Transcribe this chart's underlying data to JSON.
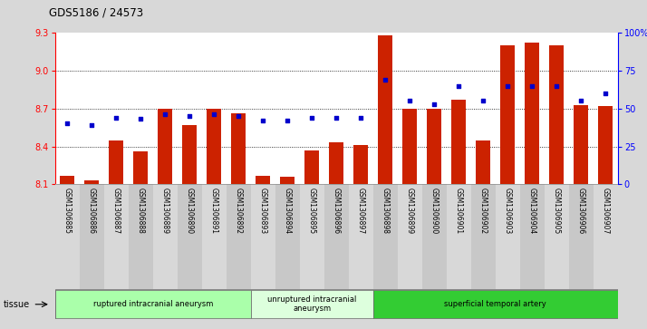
{
  "title": "GDS5186 / 24573",
  "categories": [
    "GSM1306885",
    "GSM1306886",
    "GSM1306887",
    "GSM1306888",
    "GSM1306889",
    "GSM1306890",
    "GSM1306891",
    "GSM1306892",
    "GSM1306893",
    "GSM1306894",
    "GSM1306895",
    "GSM1306896",
    "GSM1306897",
    "GSM1306898",
    "GSM1306899",
    "GSM1306900",
    "GSM1306901",
    "GSM1306902",
    "GSM1306903",
    "GSM1306904",
    "GSM1306905",
    "GSM1306906",
    "GSM1306907"
  ],
  "bar_values": [
    8.17,
    8.13,
    8.45,
    8.36,
    8.7,
    8.57,
    8.7,
    8.66,
    8.17,
    8.16,
    8.37,
    8.43,
    8.41,
    9.28,
    8.7,
    8.7,
    8.77,
    8.45,
    9.2,
    9.22,
    9.2,
    8.73,
    8.72
  ],
  "dot_values_pct": [
    40,
    39,
    44,
    43,
    46,
    45,
    46,
    45,
    42,
    42,
    44,
    44,
    44,
    69,
    55,
    53,
    65,
    55,
    65,
    65,
    65,
    55,
    60
  ],
  "bar_color": "#cc2200",
  "dot_color": "#0000cc",
  "ylim_left": [
    8.1,
    9.3
  ],
  "ylim_right": [
    0,
    100
  ],
  "yticks_left": [
    8.1,
    8.4,
    8.7,
    9.0,
    9.3
  ],
  "yticks_right": [
    0,
    25,
    50,
    75,
    100
  ],
  "ytick_labels_right": [
    "0",
    "25",
    "50",
    "75",
    "100%"
  ],
  "grid_lines": [
    8.4,
    8.7,
    9.0
  ],
  "groups": [
    {
      "label": "ruptured intracranial aneurysm",
      "start": 0,
      "end": 8,
      "color": "#aaffaa"
    },
    {
      "label": "unruptured intracranial\naneurysm",
      "start": 8,
      "end": 13,
      "color": "#ddffdd"
    },
    {
      "label": "superficial temporal artery",
      "start": 13,
      "end": 23,
      "color": "#33cc33"
    }
  ],
  "col_bg_light": "#d8d8d8",
  "col_bg_dark": "#c8c8c8",
  "tissue_label": "tissue",
  "background_color": "#d8d8d8",
  "plot_bg": "#ffffff"
}
